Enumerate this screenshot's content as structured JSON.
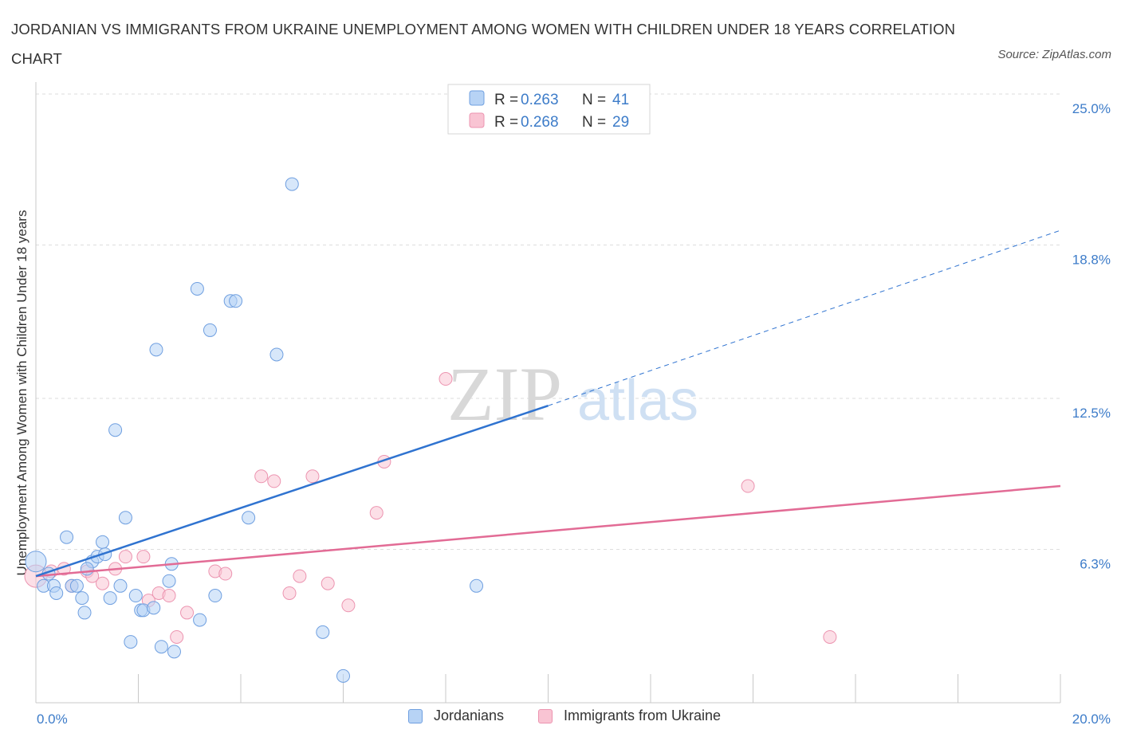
{
  "title": "JORDANIAN VS IMMIGRANTS FROM UKRAINE UNEMPLOYMENT AMONG WOMEN WITH CHILDREN UNDER 18 YEARS CORRELATION CHART",
  "source": "Source: ZipAtlas.com",
  "watermark": {
    "zip": "ZIP",
    "atlas": "atlas"
  },
  "legend": {
    "rows": [
      {
        "r_label": "R = ",
        "r_value": "0.263",
        "n_label": "N = ",
        "n_value": "41"
      },
      {
        "r_label": "R = ",
        "r_value": "0.268",
        "n_label": "N = ",
        "n_value": "29"
      }
    ]
  },
  "colors": {
    "jordanians_fill": "#b7d3f5",
    "jordanians_stroke": "#6f9fe0",
    "jordanians_line": "#2f73d0",
    "ukraine_fill": "#f9c4d3",
    "ukraine_stroke": "#ec94b0",
    "ukraine_line": "#e26b95",
    "accent_text": "#3d7cc9",
    "grid": "#dddddd"
  },
  "chart_data": {
    "type": "scatter",
    "title": "JORDANIAN VS IMMIGRANTS FROM UKRAINE UNEMPLOYMENT AMONG WOMEN WITH CHILDREN UNDER 18 YEARS CORRELATION CHART",
    "xlabel": "",
    "ylabel": "Unemployment Among Women with Children Under 18 years",
    "xlim": [
      0,
      20
    ],
    "ylim": [
      0,
      25
    ],
    "x_tick_labels": [
      "0.0%",
      "20.0%"
    ],
    "y_ticks": [
      6.3,
      12.5,
      18.8,
      25.0
    ],
    "y_tick_labels": [
      "6.3%",
      "12.5%",
      "18.8%",
      "25.0%"
    ],
    "grid": true,
    "legend_position": "top-center",
    "series": [
      {
        "name": "Jordanians",
        "r": 0.263,
        "n": 41,
        "trend": {
          "x0": 0,
          "y0": 5.2,
          "x1": 10,
          "y1": 12.2,
          "dash_to_x": 20,
          "dash_to_y": 19.4
        },
        "points": [
          [
            0.0,
            5.8
          ],
          [
            0.15,
            4.8
          ],
          [
            0.35,
            4.8
          ],
          [
            0.4,
            4.5
          ],
          [
            0.6,
            6.8
          ],
          [
            0.7,
            4.8
          ],
          [
            0.8,
            4.8
          ],
          [
            0.9,
            4.3
          ],
          [
            0.95,
            3.7
          ],
          [
            1.1,
            5.8
          ],
          [
            1.2,
            6.0
          ],
          [
            1.3,
            6.6
          ],
          [
            1.35,
            6.1
          ],
          [
            1.45,
            4.3
          ],
          [
            1.55,
            11.2
          ],
          [
            1.65,
            4.8
          ],
          [
            1.75,
            7.6
          ],
          [
            1.85,
            2.5
          ],
          [
            1.95,
            4.4
          ],
          [
            2.05,
            3.8
          ],
          [
            2.1,
            3.8
          ],
          [
            2.3,
            3.9
          ],
          [
            2.35,
            14.5
          ],
          [
            2.45,
            2.3
          ],
          [
            2.6,
            5.0
          ],
          [
            2.65,
            5.7
          ],
          [
            2.7,
            2.1
          ],
          [
            3.15,
            17.0
          ],
          [
            3.2,
            3.4
          ],
          [
            3.4,
            15.3
          ],
          [
            3.5,
            4.4
          ],
          [
            3.8,
            16.5
          ],
          [
            3.9,
            16.5
          ],
          [
            4.15,
            7.6
          ],
          [
            4.7,
            14.3
          ],
          [
            5.0,
            21.3
          ],
          [
            5.6,
            2.9
          ],
          [
            6.0,
            1.1
          ],
          [
            8.6,
            4.8
          ],
          [
            0.25,
            5.3
          ],
          [
            1.0,
            5.5
          ]
        ]
      },
      {
        "name": "Immigrants from Ukraine",
        "r": 0.268,
        "n": 29,
        "trend": {
          "x0": 0,
          "y0": 5.2,
          "x1": 20,
          "y1": 8.9
        },
        "points": [
          [
            0.0,
            5.2
          ],
          [
            0.3,
            5.4
          ],
          [
            0.55,
            5.5
          ],
          [
            0.7,
            4.8
          ],
          [
            1.0,
            5.4
          ],
          [
            1.1,
            5.2
          ],
          [
            1.3,
            4.9
          ],
          [
            1.55,
            5.5
          ],
          [
            1.75,
            6.0
          ],
          [
            2.1,
            6.0
          ],
          [
            2.2,
            4.2
          ],
          [
            2.4,
            4.5
          ],
          [
            2.6,
            4.4
          ],
          [
            2.75,
            2.7
          ],
          [
            2.95,
            3.7
          ],
          [
            3.5,
            5.4
          ],
          [
            3.7,
            5.3
          ],
          [
            4.4,
            9.3
          ],
          [
            4.65,
            9.1
          ],
          [
            4.95,
            4.5
          ],
          [
            5.15,
            5.2
          ],
          [
            5.4,
            9.3
          ],
          [
            5.7,
            4.9
          ],
          [
            6.1,
            4.0
          ],
          [
            6.65,
            7.8
          ],
          [
            6.8,
            9.9
          ],
          [
            8.0,
            13.3
          ],
          [
            13.9,
            8.9
          ],
          [
            15.5,
            2.7
          ]
        ]
      }
    ]
  },
  "bottom_legend": [
    {
      "label": "Jordanians"
    },
    {
      "label": "Immigrants from Ukraine"
    }
  ]
}
